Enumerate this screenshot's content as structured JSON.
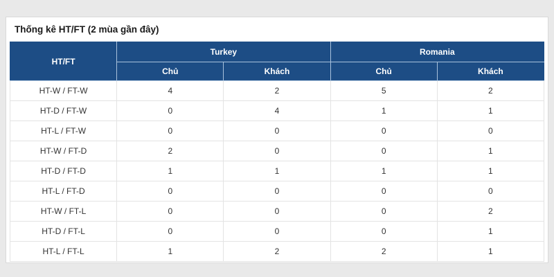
{
  "page": {
    "title": "Thống kê HT/FT (2 mùa gần đây)"
  },
  "table": {
    "corner_label": "HT/FT",
    "groups": [
      {
        "name": "Turkey",
        "sub": [
          "Chủ",
          "Khách"
        ]
      },
      {
        "name": "Romania",
        "sub": [
          "Chủ",
          "Khách"
        ]
      }
    ],
    "rows": [
      {
        "label": "HT-W / FT-W",
        "values": [
          "4",
          "2",
          "5",
          "2"
        ]
      },
      {
        "label": "HT-D / FT-W",
        "values": [
          "0",
          "4",
          "1",
          "1"
        ]
      },
      {
        "label": "HT-L / FT-W",
        "values": [
          "0",
          "0",
          "0",
          "0"
        ]
      },
      {
        "label": "HT-W / FT-D",
        "values": [
          "2",
          "0",
          "0",
          "1"
        ]
      },
      {
        "label": "HT-D / FT-D",
        "values": [
          "1",
          "1",
          "1",
          "1"
        ]
      },
      {
        "label": "HT-L / FT-D",
        "values": [
          "0",
          "0",
          "0",
          "0"
        ]
      },
      {
        "label": "HT-W / FT-L",
        "values": [
          "0",
          "0",
          "0",
          "2"
        ]
      },
      {
        "label": "HT-D / FT-L",
        "values": [
          "0",
          "0",
          "0",
          "1"
        ]
      },
      {
        "label": "HT-L / FT-L",
        "values": [
          "1",
          "2",
          "2",
          "1"
        ]
      }
    ]
  },
  "colors": {
    "header_bg": "#1d4d85",
    "header_divider": "#aac3dd",
    "page_bg": "#e9e9e9",
    "card_bg": "#ffffff",
    "body_border": "#e3e3e3",
    "text": "#333333"
  }
}
